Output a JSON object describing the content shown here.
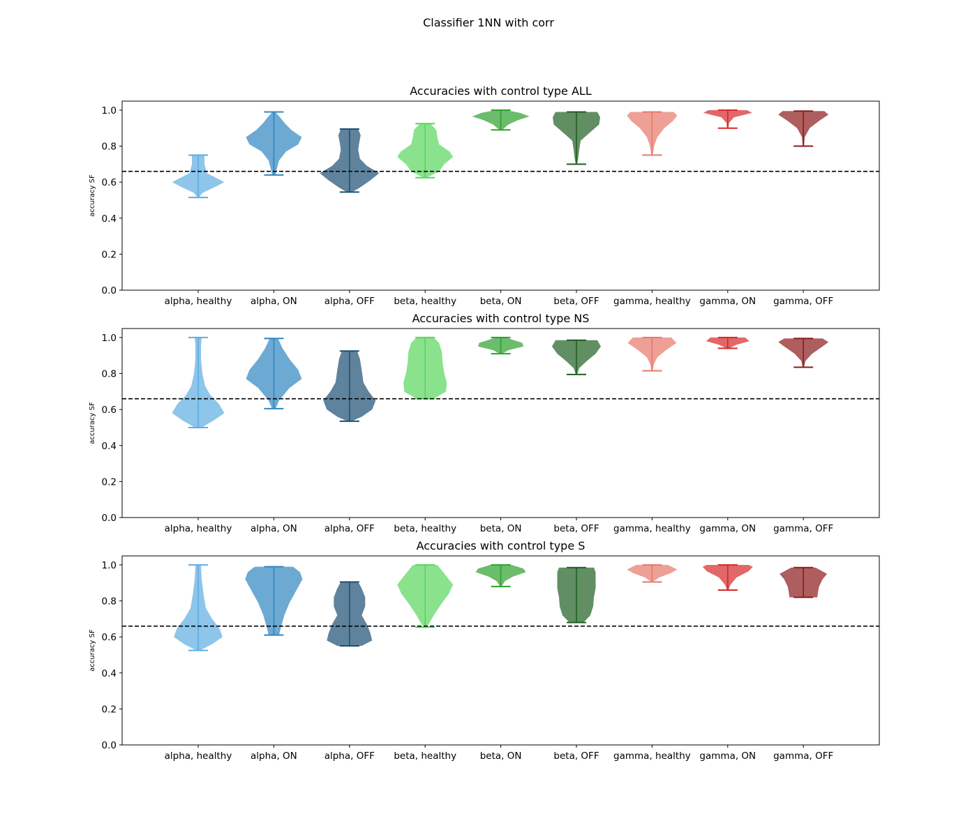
{
  "suptitle": "Classifier 1NN with corr",
  "chart_data": {
    "type": "violin",
    "categories": [
      "alpha, healthy",
      "alpha, ON",
      "alpha, OFF",
      "beta, healthy",
      "beta, ON",
      "beta, OFF",
      "gamma, healthy",
      "gamma, ON",
      "gamma, OFF"
    ],
    "colors": [
      "#5dade2",
      "#2e86c1",
      "#1b4f72",
      "#58d65c",
      "#2ca02c",
      "#1e5e20",
      "#e8786a",
      "#d62728",
      "#8b1a1a"
    ],
    "ylim": [
      0,
      1.05
    ],
    "yticks": [
      0.0,
      0.2,
      0.4,
      0.6,
      0.8,
      1.0
    ],
    "ylabel": "accuracy SF",
    "reference_line": 0.66,
    "panels": [
      {
        "title": "Accuracies with control type ALL",
        "violins": [
          {
            "min": 0.515,
            "max": 0.75,
            "profile": [
              [
                0.515,
                0.02
              ],
              [
                0.54,
                0.12
              ],
              [
                0.57,
                0.45
              ],
              [
                0.6,
                0.75
              ],
              [
                0.62,
                0.55
              ],
              [
                0.65,
                0.25
              ],
              [
                0.7,
                0.18
              ],
              [
                0.75,
                0.18
              ]
            ]
          },
          {
            "min": 0.64,
            "max": 0.99,
            "profile": [
              [
                0.64,
                0.05
              ],
              [
                0.67,
                0.08
              ],
              [
                0.72,
                0.15
              ],
              [
                0.77,
                0.35
              ],
              [
                0.81,
                0.7
              ],
              [
                0.85,
                0.8
              ],
              [
                0.89,
                0.5
              ],
              [
                0.93,
                0.3
              ],
              [
                0.96,
                0.18
              ],
              [
                0.99,
                0.04
              ]
            ]
          },
          {
            "min": 0.545,
            "max": 0.895,
            "profile": [
              [
                0.545,
                0.08
              ],
              [
                0.57,
                0.3
              ],
              [
                0.61,
                0.6
              ],
              [
                0.65,
                0.85
              ],
              [
                0.69,
                0.5
              ],
              [
                0.73,
                0.3
              ],
              [
                0.78,
                0.25
              ],
              [
                0.82,
                0.28
              ],
              [
                0.86,
                0.32
              ],
              [
                0.895,
                0.25
              ]
            ]
          },
          {
            "min": 0.625,
            "max": 0.925,
            "profile": [
              [
                0.625,
                0.05
              ],
              [
                0.66,
                0.4
              ],
              [
                0.7,
                0.55
              ],
              [
                0.74,
                0.8
              ],
              [
                0.77,
                0.7
              ],
              [
                0.81,
                0.4
              ],
              [
                0.85,
                0.35
              ],
              [
                0.89,
                0.32
              ],
              [
                0.925,
                0.15
              ]
            ]
          },
          {
            "min": 0.89,
            "max": 1.0,
            "profile": [
              [
                0.89,
                0.04
              ],
              [
                0.92,
                0.22
              ],
              [
                0.945,
                0.5
              ],
              [
                0.965,
                0.82
              ],
              [
                0.985,
                0.55
              ],
              [
                1.0,
                0.15
              ]
            ]
          },
          {
            "min": 0.7,
            "max": 0.99,
            "profile": [
              [
                0.7,
                0.02
              ],
              [
                0.73,
                0.05
              ],
              [
                0.78,
                0.08
              ],
              [
                0.83,
                0.12
              ],
              [
                0.87,
                0.35
              ],
              [
                0.92,
                0.65
              ],
              [
                0.96,
                0.68
              ],
              [
                0.99,
                0.6
              ]
            ]
          },
          {
            "min": 0.75,
            "max": 0.99,
            "profile": [
              [
                0.75,
                0.02
              ],
              [
                0.8,
                0.06
              ],
              [
                0.85,
                0.15
              ],
              [
                0.9,
                0.35
              ],
              [
                0.94,
                0.6
              ],
              [
                0.97,
                0.72
              ],
              [
                0.99,
                0.62
              ]
            ]
          },
          {
            "min": 0.9,
            "max": 1.0,
            "profile": [
              [
                0.9,
                0.02
              ],
              [
                0.93,
                0.04
              ],
              [
                0.96,
                0.18
              ],
              [
                0.985,
                0.7
              ],
              [
                1.0,
                0.55
              ]
            ]
          },
          {
            "min": 0.8,
            "max": 0.995,
            "profile": [
              [
                0.8,
                0.02
              ],
              [
                0.85,
                0.04
              ],
              [
                0.9,
                0.18
              ],
              [
                0.94,
                0.45
              ],
              [
                0.975,
                0.72
              ],
              [
                0.995,
                0.6
              ]
            ]
          }
        ]
      },
      {
        "title": "Accuracies with control type NS",
        "violins": [
          {
            "min": 0.5,
            "max": 1.0,
            "profile": [
              [
                0.5,
                0.1
              ],
              [
                0.54,
                0.45
              ],
              [
                0.58,
                0.75
              ],
              [
                0.63,
                0.6
              ],
              [
                0.68,
                0.35
              ],
              [
                0.73,
                0.2
              ],
              [
                0.8,
                0.12
              ],
              [
                0.88,
                0.08
              ],
              [
                0.95,
                0.08
              ],
              [
                1.0,
                0.1
              ]
            ]
          },
          {
            "min": 0.605,
            "max": 0.995,
            "profile": [
              [
                0.605,
                0.05
              ],
              [
                0.65,
                0.15
              ],
              [
                0.72,
                0.45
              ],
              [
                0.77,
                0.8
              ],
              [
                0.82,
                0.7
              ],
              [
                0.88,
                0.45
              ],
              [
                0.94,
                0.25
              ],
              [
                0.995,
                0.12
              ]
            ]
          },
          {
            "min": 0.535,
            "max": 0.925,
            "profile": [
              [
                0.535,
                0.06
              ],
              [
                0.56,
                0.35
              ],
              [
                0.6,
                0.65
              ],
              [
                0.65,
                0.75
              ],
              [
                0.7,
                0.55
              ],
              [
                0.75,
                0.4
              ],
              [
                0.82,
                0.35
              ],
              [
                0.88,
                0.3
              ],
              [
                0.925,
                0.22
              ]
            ]
          },
          {
            "min": 0.66,
            "max": 1.0,
            "profile": [
              [
                0.66,
                0.25
              ],
              [
                0.7,
                0.6
              ],
              [
                0.75,
                0.62
              ],
              [
                0.8,
                0.55
              ],
              [
                0.86,
                0.5
              ],
              [
                0.92,
                0.48
              ],
              [
                0.97,
                0.4
              ],
              [
                1.0,
                0.25
              ]
            ]
          },
          {
            "min": 0.91,
            "max": 1.0,
            "profile": [
              [
                0.91,
                0.04
              ],
              [
                0.93,
                0.22
              ],
              [
                0.95,
                0.65
              ],
              [
                0.97,
                0.62
              ],
              [
                0.99,
                0.3
              ],
              [
                1.0,
                0.15
              ]
            ]
          },
          {
            "min": 0.795,
            "max": 0.985,
            "profile": [
              [
                0.795,
                0.02
              ],
              [
                0.83,
                0.08
              ],
              [
                0.87,
                0.3
              ],
              [
                0.91,
                0.55
              ],
              [
                0.95,
                0.7
              ],
              [
                0.985,
                0.6
              ]
            ]
          },
          {
            "min": 0.815,
            "max": 1.0,
            "profile": [
              [
                0.815,
                0.02
              ],
              [
                0.85,
                0.05
              ],
              [
                0.89,
                0.15
              ],
              [
                0.93,
                0.4
              ],
              [
                0.97,
                0.7
              ],
              [
                1.0,
                0.55
              ]
            ]
          },
          {
            "min": 0.94,
            "max": 1.0,
            "profile": [
              [
                0.94,
                0.04
              ],
              [
                0.96,
                0.25
              ],
              [
                0.98,
                0.62
              ],
              [
                1.0,
                0.5
              ]
            ]
          },
          {
            "min": 0.835,
            "max": 0.995,
            "profile": [
              [
                0.835,
                0.02
              ],
              [
                0.87,
                0.06
              ],
              [
                0.91,
                0.25
              ],
              [
                0.95,
                0.55
              ],
              [
                0.975,
                0.72
              ],
              [
                0.995,
                0.55
              ]
            ]
          }
        ]
      },
      {
        "title": "Accuracies with control type S",
        "violins": [
          {
            "min": 0.525,
            "max": 1.0,
            "profile": [
              [
                0.525,
                0.05
              ],
              [
                0.56,
                0.4
              ],
              [
                0.6,
                0.7
              ],
              [
                0.65,
                0.6
              ],
              [
                0.7,
                0.4
              ],
              [
                0.76,
                0.22
              ],
              [
                0.84,
                0.15
              ],
              [
                0.92,
                0.1
              ],
              [
                1.0,
                0.08
              ]
            ]
          },
          {
            "min": 0.61,
            "max": 0.99,
            "profile": [
              [
                0.61,
                0.15
              ],
              [
                0.65,
                0.2
              ],
              [
                0.72,
                0.3
              ],
              [
                0.79,
                0.45
              ],
              [
                0.86,
                0.65
              ],
              [
                0.92,
                0.82
              ],
              [
                0.96,
                0.75
              ],
              [
                0.99,
                0.55
              ]
            ]
          },
          {
            "min": 0.55,
            "max": 0.905,
            "profile": [
              [
                0.55,
                0.35
              ],
              [
                0.58,
                0.65
              ],
              [
                0.62,
                0.6
              ],
              [
                0.67,
                0.5
              ],
              [
                0.72,
                0.35
              ],
              [
                0.77,
                0.45
              ],
              [
                0.82,
                0.45
              ],
              [
                0.87,
                0.35
              ],
              [
                0.905,
                0.25
              ]
            ]
          },
          {
            "min": 0.655,
            "max": 1.0,
            "profile": [
              [
                0.655,
                0.02
              ],
              [
                0.67,
                0.1
              ],
              [
                0.72,
                0.25
              ],
              [
                0.78,
                0.45
              ],
              [
                0.84,
                0.68
              ],
              [
                0.89,
                0.8
              ],
              [
                0.94,
                0.6
              ],
              [
                1.0,
                0.35
              ]
            ]
          },
          {
            "min": 0.88,
            "max": 1.0,
            "profile": [
              [
                0.88,
                0.02
              ],
              [
                0.91,
                0.12
              ],
              [
                0.935,
                0.35
              ],
              [
                0.96,
                0.72
              ],
              [
                0.98,
                0.65
              ],
              [
                1.0,
                0.3
              ]
            ]
          },
          {
            "min": 0.68,
            "max": 0.985,
            "profile": [
              [
                0.68,
                0.2
              ],
              [
                0.72,
                0.4
              ],
              [
                0.77,
                0.48
              ],
              [
                0.82,
                0.5
              ],
              [
                0.87,
                0.55
              ],
              [
                0.92,
                0.55
              ],
              [
                0.96,
                0.55
              ],
              [
                0.985,
                0.5
              ]
            ]
          },
          {
            "min": 0.905,
            "max": 1.0,
            "profile": [
              [
                0.905,
                0.02
              ],
              [
                0.93,
                0.2
              ],
              [
                0.955,
                0.55
              ],
              [
                0.975,
                0.72
              ],
              [
                1.0,
                0.45
              ]
            ]
          },
          {
            "min": 0.86,
            "max": 1.0,
            "profile": [
              [
                0.86,
                0.02
              ],
              [
                0.89,
                0.08
              ],
              [
                0.93,
                0.25
              ],
              [
                0.965,
                0.6
              ],
              [
                0.99,
                0.72
              ],
              [
                1.0,
                0.6
              ]
            ]
          },
          {
            "min": 0.82,
            "max": 0.985,
            "profile": [
              [
                0.82,
                0.4
              ],
              [
                0.85,
                0.42
              ],
              [
                0.88,
                0.45
              ],
              [
                0.92,
                0.55
              ],
              [
                0.95,
                0.68
              ],
              [
                0.985,
                0.35
              ]
            ]
          }
        ]
      }
    ]
  }
}
